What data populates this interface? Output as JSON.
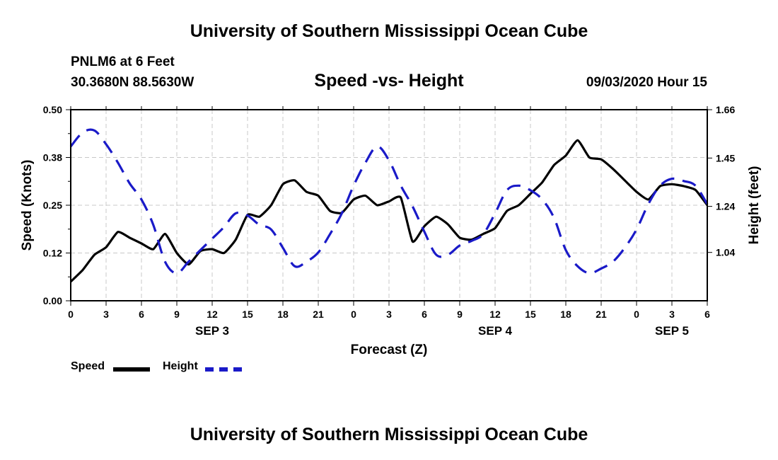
{
  "header": {
    "title": "University of Southern Mississippi Ocean Cube",
    "station": "PNLM6 at 6 Feet",
    "coords": "30.3680N 88.5630W",
    "subtitle": "Speed -vs- Height",
    "timestamp": "09/03/2020 Hour 15"
  },
  "footer": {
    "title": "University of Southern Mississippi Ocean Cube"
  },
  "legend": {
    "speed": "Speed",
    "height": "Height"
  },
  "colors": {
    "speed": "#000000",
    "height": "#1a1ac8",
    "grid": "#c8c8c8"
  },
  "chart_data": {
    "type": "line",
    "xlabel": "Forecast (Z)",
    "ylabel": "Speed (Knots)",
    "y2label": "Height (feet)",
    "xlim": [
      0,
      54
    ],
    "ylim": [
      0,
      0.5
    ],
    "y2lim": [
      0.83,
      1.66
    ],
    "x_ticks": [
      0,
      3,
      6,
      9,
      12,
      15,
      18,
      21,
      24,
      27,
      30,
      33,
      36,
      39,
      42,
      45,
      48,
      51,
      54
    ],
    "x_tick_labels": [
      "0",
      "3",
      "6",
      "9",
      "12",
      "15",
      "18",
      "21",
      "0",
      "3",
      "6",
      "9",
      "12",
      "15",
      "18",
      "21",
      "0",
      "3",
      "6"
    ],
    "y_ticks": [
      0,
      0.125,
      0.25,
      0.375,
      0.5
    ],
    "y_tick_labels": [
      "0.00",
      "0.12",
      "0.25",
      "0.38",
      "0.50"
    ],
    "y2_ticks": [
      1.04,
      1.24,
      1.45,
      1.66
    ],
    "y2_tick_labels": [
      "1.04",
      "1.24",
      "1.45",
      "1.66"
    ],
    "day_labels": [
      {
        "x": 12,
        "label": "SEP 3"
      },
      {
        "x": 36,
        "label": "SEP 4"
      },
      {
        "x": 51,
        "label": "SEP 5"
      }
    ],
    "series": [
      {
        "name": "Speed",
        "axis": "left",
        "x": [
          0,
          1,
          2,
          3,
          4,
          5,
          6,
          7,
          8,
          9,
          10,
          11,
          12,
          13,
          14,
          15,
          16,
          17,
          18,
          19,
          20,
          21,
          22,
          23,
          24,
          25,
          26,
          27,
          28,
          29,
          30,
          31,
          32,
          33,
          34,
          35,
          36,
          37,
          38,
          39,
          40,
          41,
          42,
          43,
          44,
          45,
          46,
          47,
          48,
          49,
          50,
          51,
          52,
          53,
          54
        ],
        "values": [
          0.05,
          0.08,
          0.12,
          0.14,
          0.18,
          0.165,
          0.15,
          0.135,
          0.175,
          0.125,
          0.095,
          0.13,
          0.135,
          0.125,
          0.16,
          0.225,
          0.22,
          0.25,
          0.305,
          0.315,
          0.285,
          0.275,
          0.235,
          0.23,
          0.265,
          0.275,
          0.25,
          0.26,
          0.27,
          0.155,
          0.195,
          0.22,
          0.2,
          0.165,
          0.16,
          0.175,
          0.19,
          0.235,
          0.25,
          0.28,
          0.31,
          0.355,
          0.38,
          0.42,
          0.375,
          0.37,
          0.345,
          0.315,
          0.285,
          0.265,
          0.3,
          0.305,
          0.3,
          0.29,
          0.25
        ]
      },
      {
        "name": "Height",
        "axis": "right",
        "x": [
          0,
          1,
          2,
          3,
          4,
          5,
          6,
          7,
          8,
          9,
          10,
          11,
          12,
          13,
          14,
          15,
          16,
          17,
          18,
          19,
          20,
          21,
          22,
          23,
          24,
          25,
          26,
          27,
          28,
          29,
          30,
          31,
          32,
          33,
          34,
          35,
          36,
          37,
          38,
          39,
          40,
          41,
          42,
          43,
          44,
          45,
          46,
          47,
          48,
          49,
          50,
          51,
          52,
          53,
          54
        ],
        "values": [
          1.5,
          1.56,
          1.57,
          1.51,
          1.43,
          1.34,
          1.27,
          1.16,
          1.0,
          0.95,
          1.0,
          1.05,
          1.1,
          1.15,
          1.21,
          1.2,
          1.16,
          1.14,
          1.06,
          0.98,
          1.0,
          1.04,
          1.12,
          1.21,
          1.33,
          1.43,
          1.5,
          1.44,
          1.33,
          1.24,
          1.13,
          1.03,
          1.03,
          1.07,
          1.09,
          1.12,
          1.21,
          1.31,
          1.33,
          1.31,
          1.27,
          1.19,
          1.05,
          0.98,
          0.95,
          0.97,
          1.0,
          1.06,
          1.14,
          1.25,
          1.33,
          1.36,
          1.35,
          1.33,
          1.25
        ]
      }
    ]
  }
}
